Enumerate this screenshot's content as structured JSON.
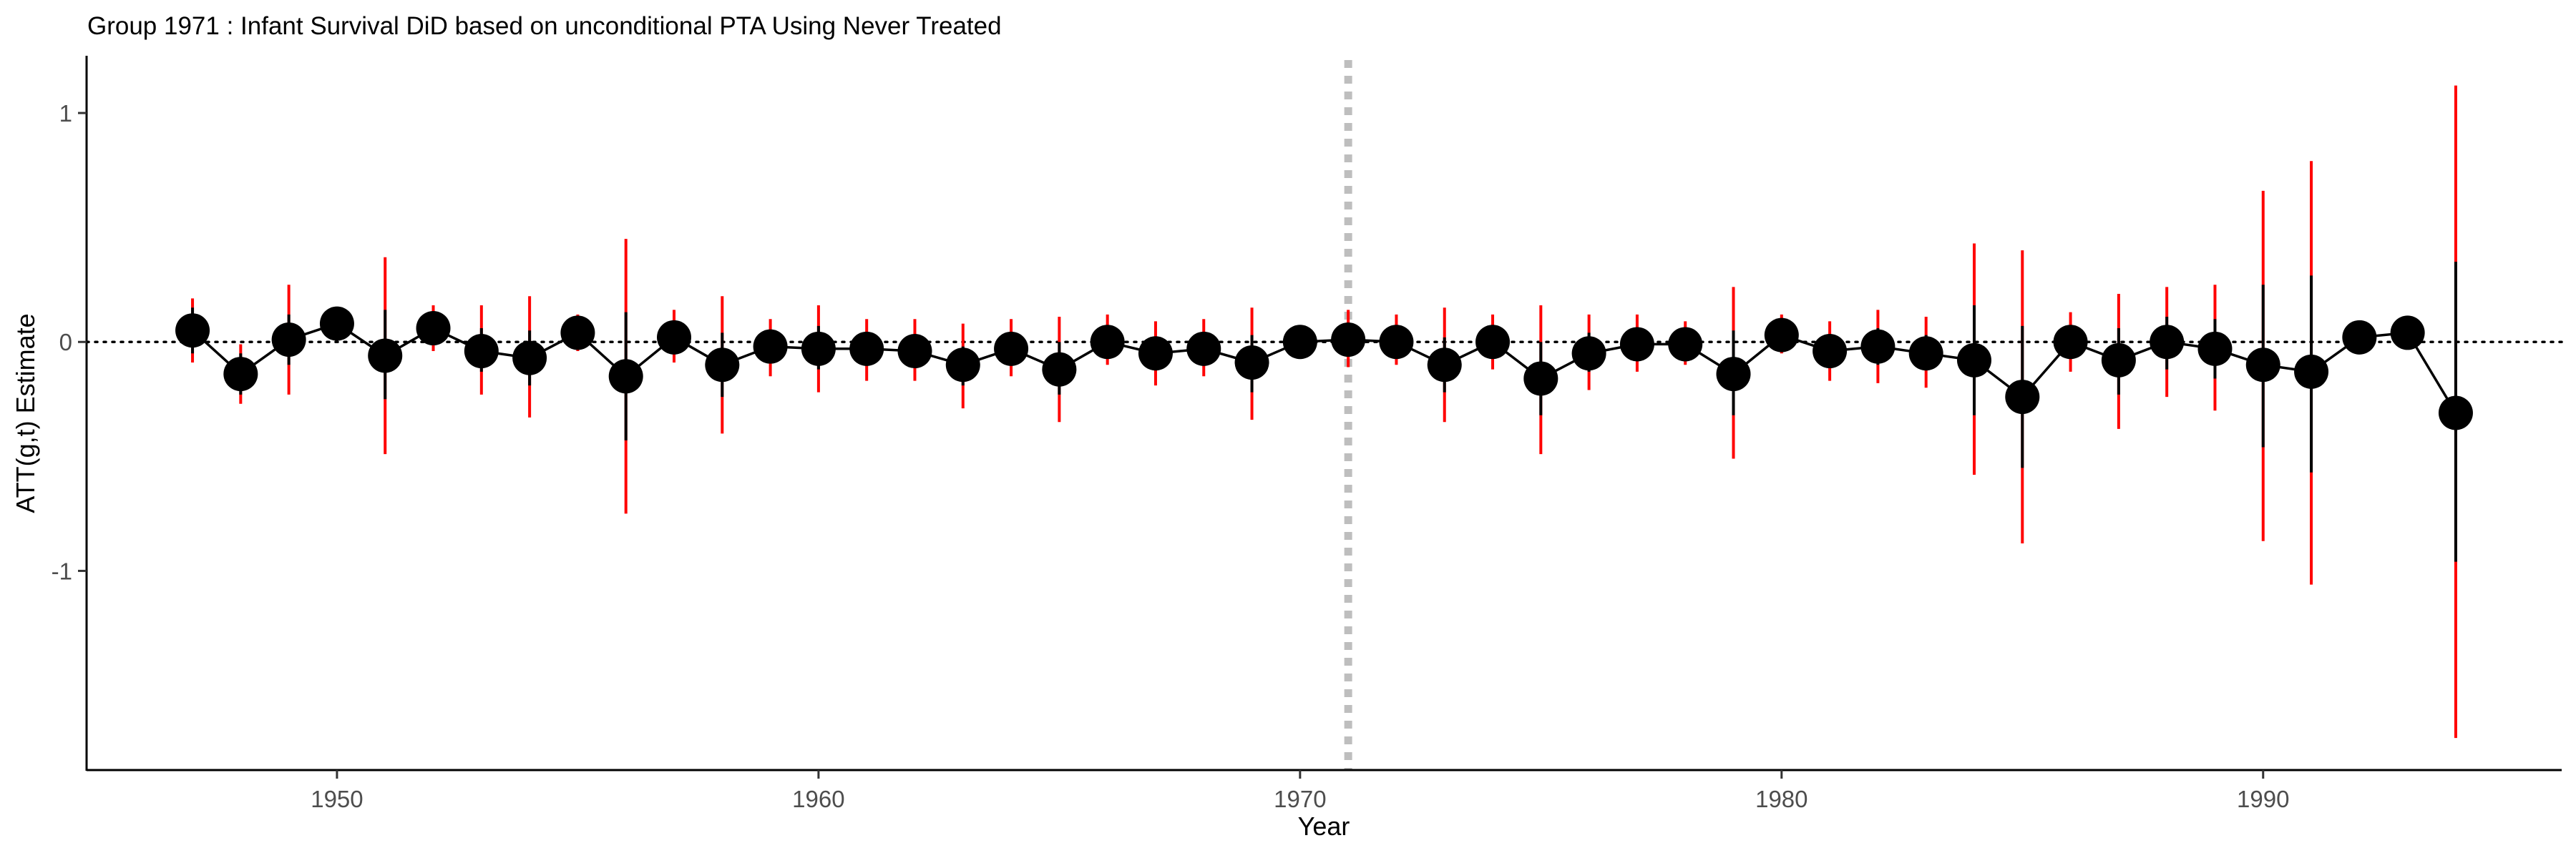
{
  "chart_data": {
    "type": "scatter",
    "title": "Group 1971 : Infant Survival DiD based on unconditional PTA Using Never Treated",
    "xlabel": "Year",
    "ylabel": "ATT(g,t) Estimate",
    "xlim": [
      1944.8,
      1996.2
    ],
    "ylim": [
      -1.87,
      1.25
    ],
    "x_ticks": [
      1950,
      1960,
      1970,
      1980,
      1990
    ],
    "y_ticks": [
      1,
      0,
      -1
    ],
    "y_tick_labels": [
      "1",
      "0",
      "-1"
    ],
    "treatment_year": 1971,
    "reference_line_y": 0,
    "legend": "none",
    "grid": false,
    "colors": {
      "point": "#000000",
      "line": "#000000",
      "ci_overlap": "#000000",
      "ci": "#ff0000",
      "vline": "#bebebe",
      "hline": "#000000"
    },
    "points": [
      {
        "x": 1947,
        "y": 0.05,
        "lo": -0.09,
        "hi": 0.19,
        "lo_b": -0.05,
        "hi_b": 0.15
      },
      {
        "x": 1948,
        "y": -0.14,
        "lo": -0.27,
        "hi": -0.01,
        "lo_b": -0.23,
        "hi_b": -0.05
      },
      {
        "x": 1949,
        "y": 0.01,
        "lo": -0.23,
        "hi": 0.25,
        "lo_b": -0.1,
        "hi_b": 0.12
      },
      {
        "x": 1950,
        "y": 0.08,
        "lo": 0.01,
        "hi": 0.15,
        "lo_b": 0.04,
        "hi_b": 0.12
      },
      {
        "x": 1951,
        "y": -0.06,
        "lo": -0.49,
        "hi": 0.37,
        "lo_b": -0.25,
        "hi_b": 0.14
      },
      {
        "x": 1952,
        "y": 0.06,
        "lo": -0.04,
        "hi": 0.16,
        "lo_b": 0.0,
        "hi_b": 0.12
      },
      {
        "x": 1953,
        "y": -0.04,
        "lo": -0.23,
        "hi": 0.16,
        "lo_b": -0.13,
        "hi_b": 0.06
      },
      {
        "x": 1954,
        "y": -0.07,
        "lo": -0.33,
        "hi": 0.2,
        "lo_b": -0.19,
        "hi_b": 0.05
      },
      {
        "x": 1955,
        "y": 0.04,
        "lo": -0.04,
        "hi": 0.12,
        "lo_b": 0.0,
        "hi_b": 0.09
      },
      {
        "x": 1956,
        "y": -0.15,
        "lo": -0.75,
        "hi": 0.45,
        "lo_b": -0.43,
        "hi_b": 0.13
      },
      {
        "x": 1957,
        "y": 0.02,
        "lo": -0.09,
        "hi": 0.14,
        "lo_b": -0.04,
        "hi_b": 0.08
      },
      {
        "x": 1958,
        "y": -0.1,
        "lo": -0.4,
        "hi": 0.2,
        "lo_b": -0.24,
        "hi_b": 0.04
      },
      {
        "x": 1959,
        "y": -0.02,
        "lo": -0.15,
        "hi": 0.1,
        "lo_b": -0.08,
        "hi_b": 0.04
      },
      {
        "x": 1960,
        "y": -0.03,
        "lo": -0.22,
        "hi": 0.16,
        "lo_b": -0.12,
        "hi_b": 0.07
      },
      {
        "x": 1961,
        "y": -0.03,
        "lo": -0.17,
        "hi": 0.1,
        "lo_b": -0.1,
        "hi_b": 0.03
      },
      {
        "x": 1962,
        "y": -0.04,
        "lo": -0.17,
        "hi": 0.1,
        "lo_b": -0.1,
        "hi_b": 0.03
      },
      {
        "x": 1963,
        "y": -0.1,
        "lo": -0.29,
        "hi": 0.08,
        "lo_b": -0.19,
        "hi_b": -0.02
      },
      {
        "x": 1964,
        "y": -0.03,
        "lo": -0.15,
        "hi": 0.1,
        "lo_b": -0.09,
        "hi_b": 0.04
      },
      {
        "x": 1965,
        "y": -0.12,
        "lo": -0.35,
        "hi": 0.11,
        "lo_b": -0.23,
        "hi_b": 0.0
      },
      {
        "x": 1966,
        "y": 0.0,
        "lo": -0.1,
        "hi": 0.12,
        "lo_b": -0.05,
        "hi_b": 0.06
      },
      {
        "x": 1967,
        "y": -0.05,
        "lo": -0.19,
        "hi": 0.09,
        "lo_b": -0.11,
        "hi_b": 0.02
      },
      {
        "x": 1968,
        "y": -0.03,
        "lo": -0.15,
        "hi": 0.1,
        "lo_b": -0.09,
        "hi_b": 0.04
      },
      {
        "x": 1969,
        "y": -0.09,
        "lo": -0.34,
        "hi": 0.15,
        "lo_b": -0.22,
        "hi_b": 0.03
      },
      {
        "x": 1970,
        "y": 0.0,
        "lo": -0.05,
        "hi": 0.06,
        "lo_b": -0.03,
        "hi_b": 0.03
      },
      {
        "x": 1971,
        "y": 0.01,
        "lo": -0.11,
        "hi": 0.14,
        "lo_b": -0.05,
        "hi_b": 0.08
      },
      {
        "x": 1972,
        "y": 0.0,
        "lo": -0.1,
        "hi": 0.12,
        "lo_b": -0.05,
        "hi_b": 0.06
      },
      {
        "x": 1973,
        "y": -0.1,
        "lo": -0.35,
        "hi": 0.15,
        "lo_b": -0.22,
        "hi_b": 0.02
      },
      {
        "x": 1974,
        "y": 0.0,
        "lo": -0.12,
        "hi": 0.12,
        "lo_b": -0.06,
        "hi_b": 0.06
      },
      {
        "x": 1975,
        "y": -0.16,
        "lo": -0.49,
        "hi": 0.16,
        "lo_b": -0.32,
        "hi_b": 0.0
      },
      {
        "x": 1976,
        "y": -0.05,
        "lo": -0.21,
        "hi": 0.12,
        "lo_b": -0.13,
        "hi_b": 0.04
      },
      {
        "x": 1977,
        "y": -0.01,
        "lo": -0.13,
        "hi": 0.12,
        "lo_b": -0.07,
        "hi_b": 0.06
      },
      {
        "x": 1978,
        "y": -0.01,
        "lo": -0.1,
        "hi": 0.09,
        "lo_b": -0.05,
        "hi_b": 0.04
      },
      {
        "x": 1979,
        "y": -0.14,
        "lo": -0.51,
        "hi": 0.24,
        "lo_b": -0.32,
        "hi_b": 0.05
      },
      {
        "x": 1980,
        "y": 0.03,
        "lo": -0.05,
        "hi": 0.12,
        "lo_b": -0.01,
        "hi_b": 0.08
      },
      {
        "x": 1981,
        "y": -0.04,
        "lo": -0.17,
        "hi": 0.09,
        "lo_b": -0.1,
        "hi_b": 0.03
      },
      {
        "x": 1982,
        "y": -0.02,
        "lo": -0.18,
        "hi": 0.14,
        "lo_b": -0.1,
        "hi_b": 0.06
      },
      {
        "x": 1983,
        "y": -0.05,
        "lo": -0.2,
        "hi": 0.11,
        "lo_b": -0.12,
        "hi_b": 0.03
      },
      {
        "x": 1984,
        "y": -0.08,
        "lo": -0.58,
        "hi": 0.43,
        "lo_b": -0.32,
        "hi_b": 0.16
      },
      {
        "x": 1985,
        "y": -0.24,
        "lo": -0.88,
        "hi": 0.4,
        "lo_b": -0.55,
        "hi_b": 0.07
      },
      {
        "x": 1986,
        "y": 0.0,
        "lo": -0.13,
        "hi": 0.13,
        "lo_b": -0.06,
        "hi_b": 0.06
      },
      {
        "x": 1987,
        "y": -0.08,
        "lo": -0.38,
        "hi": 0.21,
        "lo_b": -0.23,
        "hi_b": 0.06
      },
      {
        "x": 1988,
        "y": 0.0,
        "lo": -0.24,
        "hi": 0.24,
        "lo_b": -0.12,
        "hi_b": 0.11
      },
      {
        "x": 1989,
        "y": -0.03,
        "lo": -0.3,
        "hi": 0.25,
        "lo_b": -0.16,
        "hi_b": 0.1
      },
      {
        "x": 1990,
        "y": -0.1,
        "lo": -0.87,
        "hi": 0.66,
        "lo_b": -0.46,
        "hi_b": 0.25
      },
      {
        "x": 1991,
        "y": -0.13,
        "lo": -1.06,
        "hi": 0.79,
        "lo_b": -0.57,
        "hi_b": 0.29
      },
      {
        "x": 1992,
        "y": 0.02,
        "lo": -0.03,
        "hi": 0.08,
        "lo_b": 0.0,
        "hi_b": 0.05
      },
      {
        "x": 1993,
        "y": 0.04,
        "lo": 0.0,
        "hi": 0.08,
        "lo_b": 0.02,
        "hi_b": 0.06
      },
      {
        "x": 1994,
        "y": -0.31,
        "lo": -1.73,
        "hi": 1.12,
        "lo_b": -0.96,
        "hi_b": 0.35
      }
    ]
  }
}
